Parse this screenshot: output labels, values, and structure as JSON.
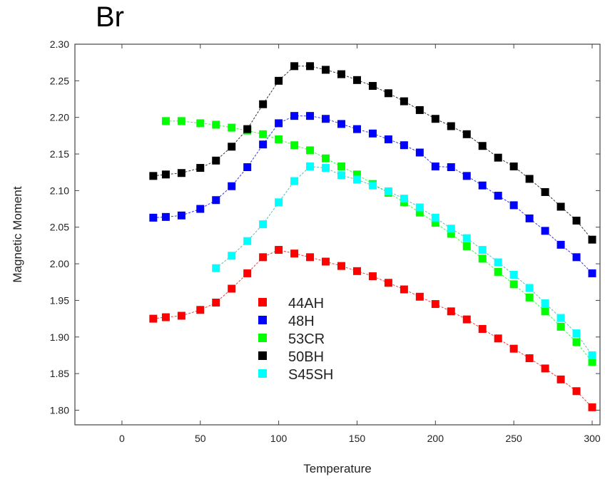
{
  "figure": {
    "panel_label": "Br"
  },
  "chart_data": {
    "type": "scatter",
    "xlabel": "Temperature",
    "ylabel": "Magnetic Moment",
    "xlim": [
      -30,
      305
    ],
    "ylim": [
      1.78,
      2.3
    ],
    "xticks": [
      0,
      50,
      100,
      150,
      200,
      250,
      300
    ],
    "yticks": [
      1.8,
      1.85,
      1.9,
      1.95,
      2.0,
      2.05,
      2.1,
      2.15,
      2.2,
      2.25,
      2.3
    ],
    "markers": "filled squares joined by thin lines",
    "legend_position": "lower-left inside plot",
    "series": [
      {
        "name": "44AH",
        "color": "#ff0000",
        "x": [
          20,
          28,
          38,
          50,
          60,
          70,
          80,
          90,
          100,
          110,
          120,
          130,
          140,
          150,
          160,
          170,
          180,
          190,
          200,
          210,
          220,
          230,
          240,
          250,
          260,
          270,
          280,
          290,
          300
        ],
        "y": [
          1.925,
          1.927,
          1.929,
          1.937,
          1.947,
          1.966,
          1.987,
          2.009,
          2.019,
          2.014,
          2.009,
          2.003,
          1.997,
          1.99,
          1.983,
          1.974,
          1.965,
          1.955,
          1.945,
          1.935,
          1.924,
          1.911,
          1.898,
          1.884,
          1.871,
          1.857,
          1.842,
          1.826,
          1.804
        ]
      },
      {
        "name": "48H",
        "color": "#0000ff",
        "x": [
          20,
          28,
          38,
          50,
          60,
          70,
          80,
          90,
          100,
          110,
          120,
          130,
          140,
          150,
          160,
          170,
          180,
          190,
          200,
          210,
          220,
          230,
          240,
          250,
          260,
          270,
          280,
          290,
          300
        ],
        "y": [
          2.063,
          2.064,
          2.066,
          2.075,
          2.087,
          2.106,
          2.132,
          2.163,
          2.192,
          2.202,
          2.202,
          2.198,
          2.191,
          2.184,
          2.178,
          2.17,
          2.162,
          2.152,
          2.133,
          2.132,
          2.12,
          2.107,
          2.093,
          2.08,
          2.062,
          2.045,
          2.026,
          2.009,
          1.987
        ]
      },
      {
        "name": "53CR",
        "color": "#00ff00",
        "x": [
          28,
          38,
          50,
          60,
          70,
          80,
          90,
          100,
          110,
          120,
          130,
          140,
          150,
          160,
          170,
          180,
          190,
          200,
          210,
          220,
          230,
          240,
          250,
          260,
          270,
          280,
          290,
          300
        ],
        "y": [
          2.195,
          2.195,
          2.192,
          2.19,
          2.186,
          2.182,
          2.177,
          2.17,
          2.162,
          2.155,
          2.144,
          2.133,
          2.122,
          2.109,
          2.097,
          2.084,
          2.07,
          2.056,
          2.041,
          2.024,
          2.007,
          1.989,
          1.972,
          1.954,
          1.935,
          1.914,
          1.893,
          1.866
        ]
      },
      {
        "name": "50BH",
        "color": "#000000",
        "x": [
          20,
          28,
          38,
          50,
          60,
          70,
          80,
          90,
          100,
          110,
          120,
          130,
          140,
          150,
          160,
          170,
          180,
          190,
          200,
          210,
          220,
          230,
          240,
          250,
          260,
          270,
          280,
          290,
          300
        ],
        "y": [
          2.12,
          2.122,
          2.124,
          2.131,
          2.141,
          2.16,
          2.184,
          2.218,
          2.25,
          2.27,
          2.27,
          2.265,
          2.259,
          2.251,
          2.243,
          2.233,
          2.222,
          2.21,
          2.198,
          2.188,
          2.177,
          2.161,
          2.145,
          2.133,
          2.116,
          2.098,
          2.078,
          2.059,
          2.033
        ]
      },
      {
        "name": "S45SH",
        "color": "#00ffff",
        "x": [
          60,
          70,
          80,
          90,
          100,
          110,
          120,
          130,
          140,
          150,
          160,
          170,
          180,
          190,
          200,
          210,
          220,
          230,
          240,
          250,
          260,
          270,
          280,
          290,
          300
        ],
        "y": [
          1.994,
          2.011,
          2.031,
          2.054,
          2.084,
          2.113,
          2.133,
          2.131,
          2.121,
          2.115,
          2.107,
          2.099,
          2.089,
          2.077,
          2.063,
          2.048,
          2.035,
          2.019,
          2.002,
          1.985,
          1.967,
          1.946,
          1.926,
          1.905,
          1.875
        ]
      }
    ]
  }
}
